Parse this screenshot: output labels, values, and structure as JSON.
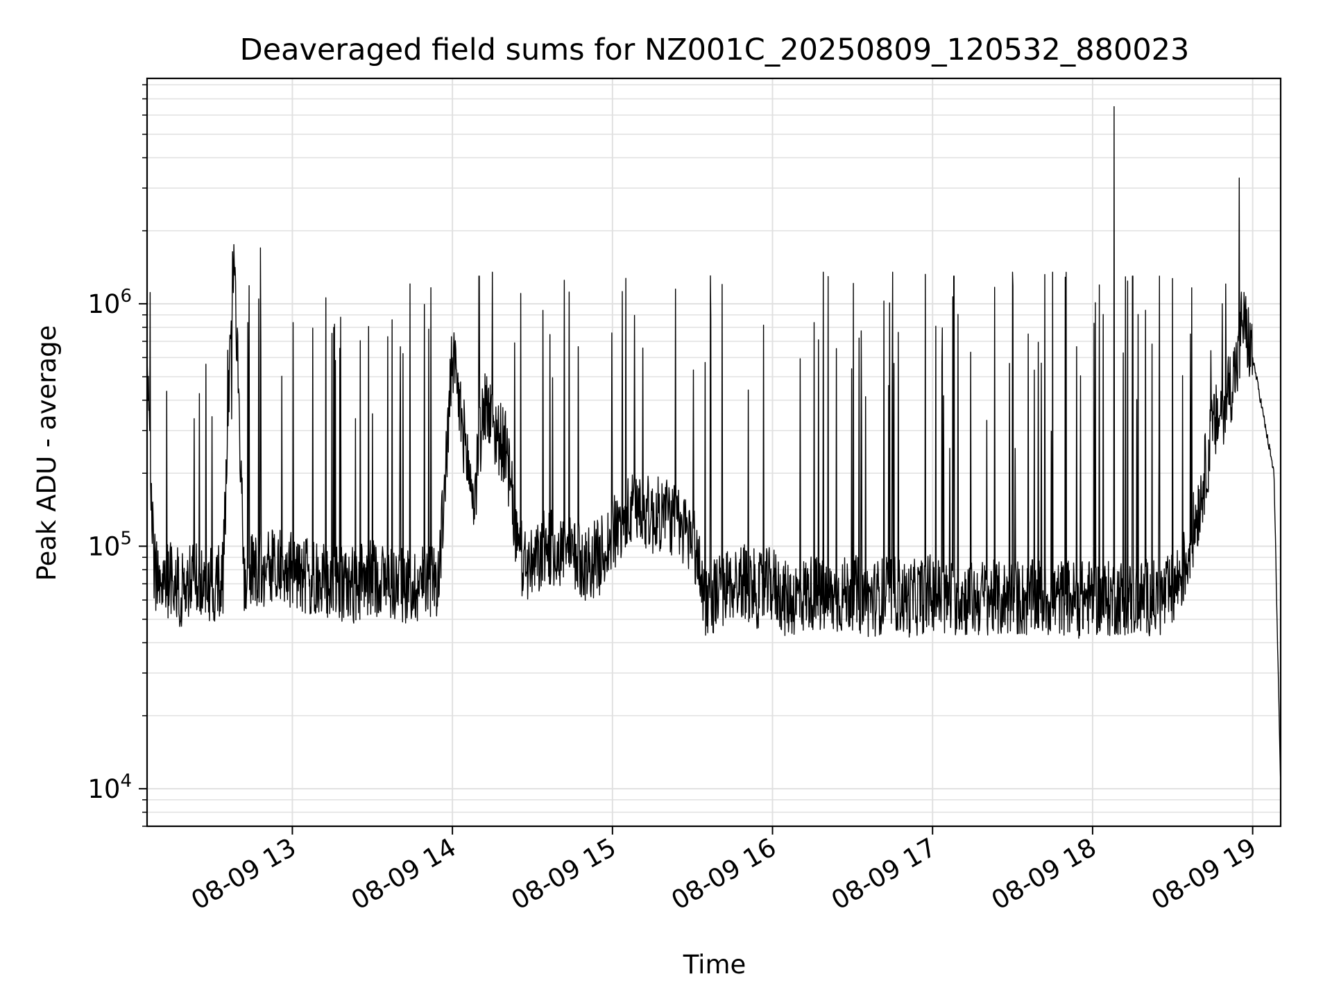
{
  "chart_data": {
    "type": "line",
    "title": "Deaveraged field sums for NZ001C_20250809_120532_880023",
    "xlabel": "Time",
    "ylabel": "Peak ADU - average",
    "y_scale": "log",
    "ylim": [
      7000,
      8500000
    ],
    "xlim": [
      "2025-08-09 12:05:32",
      "2025-08-09 19:10:30"
    ],
    "grid": true,
    "colors": {
      "line": "#000000",
      "grid": "#e0e0e0",
      "axes": "#000000"
    },
    "x_ticks": [
      {
        "time": "2025-08-09 13:00",
        "label": "08-09 13"
      },
      {
        "time": "2025-08-09 14:00",
        "label": "08-09 14"
      },
      {
        "time": "2025-08-09 15:00",
        "label": "08-09 15"
      },
      {
        "time": "2025-08-09 16:00",
        "label": "08-09 16"
      },
      {
        "time": "2025-08-09 17:00",
        "label": "08-09 17"
      },
      {
        "time": "2025-08-09 18:00",
        "label": "08-09 18"
      },
      {
        "time": "2025-08-09 19:00",
        "label": "08-09 19"
      }
    ],
    "y_ticks": [
      {
        "value": 10000,
        "base": "10",
        "exp": "4"
      },
      {
        "value": 100000,
        "base": "10",
        "exp": "5"
      },
      {
        "value": 1000000,
        "base": "10",
        "exp": "6"
      }
    ],
    "series": [
      {
        "x": [
          "12:05:32",
          "12:08",
          "12:12",
          "12:15",
          "12:18",
          "12:22",
          "12:26",
          "12:30",
          "12:34",
          "12:38",
          "12:42",
          "12:45",
          "12:50",
          "12:55",
          "13:00",
          "13:05",
          "13:10",
          "13:15",
          "13:20",
          "13:25",
          "13:30",
          "13:35",
          "13:40",
          "13:45",
          "13:50",
          "13:55",
          "14:00",
          "14:04",
          "14:08",
          "14:12",
          "14:16",
          "14:20",
          "14:25",
          "14:30",
          "14:35",
          "14:40",
          "14:45",
          "14:50",
          "14:55",
          "15:00",
          "15:05",
          "15:10",
          "15:15",
          "15:20",
          "15:25",
          "15:30",
          "15:35",
          "15:40",
          "15:45",
          "15:50",
          "15:55",
          "16:00",
          "16:05",
          "16:10",
          "16:15",
          "16:20",
          "16:25",
          "16:30",
          "16:35",
          "16:40",
          "16:45",
          "16:50",
          "16:55",
          "17:00",
          "17:05",
          "17:10",
          "17:15",
          "17:20",
          "17:25",
          "17:30",
          "17:35",
          "17:40",
          "17:45",
          "17:50",
          "17:55",
          "18:00",
          "18:05",
          "18:10",
          "18:15",
          "18:20",
          "18:25",
          "18:30",
          "18:35",
          "18:40",
          "18:45",
          "18:50",
          "18:55",
          "18:56",
          "19:00",
          "19:03",
          "19:05",
          "19:08",
          "19:10:30"
        ],
        "y": [
          600000,
          80000,
          70000,
          75000,
          65000,
          72000,
          70000,
          68000,
          75000,
          1700000,
          75000,
          80000,
          78000,
          85000,
          80000,
          75000,
          70000,
          72000,
          68000,
          70000,
          75000,
          72000,
          70000,
          68000,
          72000,
          75000,
          600000,
          300000,
          150000,
          400000,
          300000,
          250000,
          90000,
          80000,
          100000,
          95000,
          90000,
          85000,
          90000,
          110000,
          130000,
          150000,
          130000,
          140000,
          120000,
          110000,
          60000,
          65000,
          70000,
          72000,
          65000,
          70000,
          60000,
          62000,
          65000,
          60000,
          62000,
          65000,
          60000,
          62000,
          65000,
          60000,
          62000,
          65000,
          60000,
          62000,
          60000,
          62000,
          60000,
          62000,
          60000,
          62000,
          60000,
          62000,
          60000,
          62000,
          60000,
          62000,
          60000,
          62000,
          60000,
          65000,
          85000,
          150000,
          300000,
          400000,
          600000,
          900000,
          600000,
          400000,
          300000,
          200000,
          10000
        ],
        "spikes": [
          {
            "x": "12:48",
            "y": 1700000
          },
          {
            "x": "14:00",
            "y": 600000
          },
          {
            "x": "14:10",
            "y": 1300000
          },
          {
            "x": "14:15",
            "y": 1350000
          },
          {
            "x": "14:42",
            "y": 1250000
          },
          {
            "x": "16:19",
            "y": 1350000
          },
          {
            "x": "16:45",
            "y": 1350000
          },
          {
            "x": "17:08",
            "y": 1300000
          },
          {
            "x": "17:30",
            "y": 1350000
          },
          {
            "x": "17:45",
            "y": 1350000
          },
          {
            "x": "18:08",
            "y": 6500000
          },
          {
            "x": "18:15",
            "y": 1300000
          },
          {
            "x": "18:25",
            "y": 1300000
          },
          {
            "x": "18:55",
            "y": 3300000
          }
        ]
      }
    ]
  }
}
